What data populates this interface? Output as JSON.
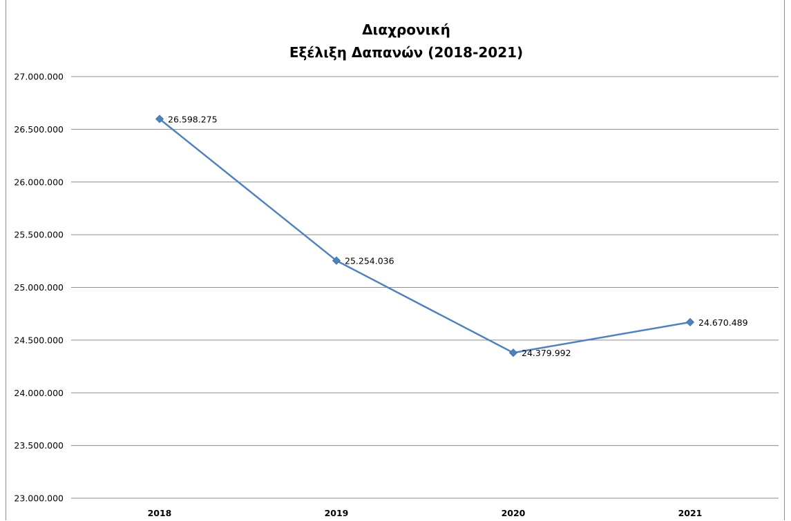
{
  "chart_data": {
    "type": "line",
    "title": "Διαχρονική",
    "subtitle": "Εξέλιξη Δαπανών (2018-2021)",
    "categories": [
      "2018",
      "2019",
      "2020",
      "2021"
    ],
    "series": [
      {
        "values": [
          26598275,
          25254036,
          24379992,
          24670489
        ],
        "labels": [
          "26.598.275",
          "25.254.036",
          "24.379.992",
          "24.670.489"
        ],
        "color": "#4f81bd",
        "marker": "diamond"
      }
    ],
    "ylim": [
      23000000,
      27000000
    ],
    "yticks": [
      23000000,
      23500000,
      24000000,
      24500000,
      25000000,
      25500000,
      26000000,
      26500000,
      27000000
    ],
    "ytick_labels": [
      "23.000.000",
      "23.500.000",
      "24.000.000",
      "24.500.000",
      "25.000.000",
      "25.500.000",
      "26.000.000",
      "26.500.000",
      "27.000.000"
    ],
    "grid": true,
    "legend": "none"
  }
}
